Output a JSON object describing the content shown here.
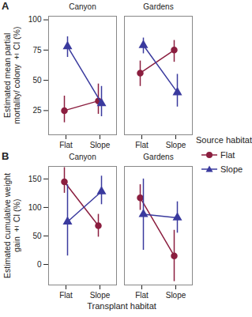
{
  "chart_data": [
    {
      "type": "line",
      "panel_label": "A",
      "y_label": "Estimated mean partial mortality/ colony ± CI (%)",
      "legend": "right",
      "legend_title": "Source habitat",
      "categories": [
        "Flat",
        "Slope"
      ],
      "ylim": [
        5,
        103
      ],
      "yticks": [
        25,
        50,
        75,
        100
      ],
      "facets": [
        {
          "title": "Canyon",
          "series": [
            {
              "name": "Flat",
              "color": "#8b1e3f",
              "marker": "circle",
              "values": [
                25,
                33
              ],
              "ci_low": [
                15,
                22
              ],
              "ci_high": [
                37,
                47
              ]
            },
            {
              "name": "Slope",
              "color": "#3a3a9e",
              "marker": "triangle",
              "values": [
                78,
                31
              ],
              "ci_low": [
                69,
                20
              ],
              "ci_high": [
                86,
                45
              ]
            }
          ]
        },
        {
          "title": "Gardens",
          "series": [
            {
              "name": "Flat",
              "color": "#8b1e3f",
              "marker": "circle",
              "values": [
                56,
                75
              ],
              "ci_low": [
                45,
                65
              ],
              "ci_high": [
                66,
                83
              ]
            },
            {
              "name": "Slope",
              "color": "#3a3a9e",
              "marker": "triangle",
              "values": [
                79,
                40
              ],
              "ci_low": [
                72,
                28
              ],
              "ci_high": [
                85,
                55
              ]
            }
          ]
        }
      ]
    },
    {
      "type": "line",
      "panel_label": "B",
      "y_label": "Estimated cumulative weight gain ± CI (%)",
      "x_label": "Transplant habitat",
      "categories": [
        "Flat",
        "Slope"
      ],
      "ylim": [
        -36,
        172
      ],
      "yticks": [
        0,
        50,
        100,
        150
      ],
      "facets": [
        {
          "title": "Canyon",
          "series": [
            {
              "name": "Flat",
              "color": "#8b1e3f",
              "marker": "circle",
              "values": [
                145,
                68
              ],
              "ci_low": [
                125,
                48
              ],
              "ci_high": [
                170,
                88
              ]
            },
            {
              "name": "Slope",
              "color": "#3a3a9e",
              "marker": "triangle",
              "values": [
                75,
                128
              ],
              "ci_low": [
                15,
                105
              ],
              "ci_high": [
                140,
                155
              ]
            }
          ]
        },
        {
          "title": "Gardens",
          "series": [
            {
              "name": "Flat",
              "color": "#8b1e3f",
              "marker": "circle",
              "values": [
                117,
                15
              ],
              "ci_low": [
                95,
                -30
              ],
              "ci_high": [
                140,
                60
              ]
            },
            {
              "name": "Slope",
              "color": "#3a3a9e",
              "marker": "triangle",
              "values": [
                88,
                82
              ],
              "ci_low": [
                25,
                55
              ],
              "ci_high": [
                150,
                110
              ]
            }
          ]
        }
      ]
    }
  ]
}
